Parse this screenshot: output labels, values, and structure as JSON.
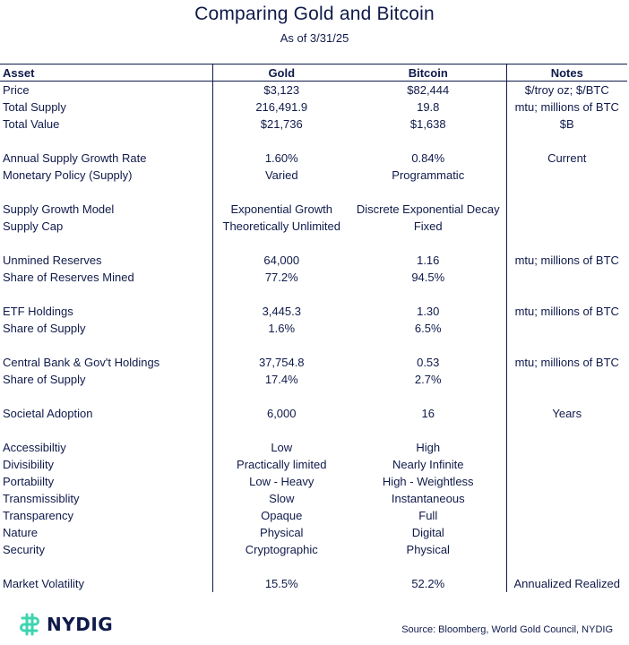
{
  "title": "Comparing Gold and Bitcoin",
  "subtitle": "As of 3/31/25",
  "headers": [
    "Asset",
    "Gold",
    "Bitcoin",
    "Notes"
  ],
  "groups": [
    [
      {
        "label": "Price",
        "gold": "$3,123",
        "bitcoin": "$82,444",
        "notes": "$/troy oz; $/BTC"
      },
      {
        "label": "Total Supply",
        "gold": "216,491.9",
        "bitcoin": "19.8",
        "notes": "mtu; millions of BTC"
      },
      {
        "label": "Total Value",
        "gold": "$21,736",
        "bitcoin": "$1,638",
        "notes": "$B"
      }
    ],
    [
      {
        "label": "Annual Supply Growth Rate",
        "gold": "1.60%",
        "bitcoin": "0.84%",
        "notes": "Current"
      },
      {
        "label": "Monetary Policy (Supply)",
        "gold": "Varied",
        "bitcoin": "Programmatic",
        "notes": ""
      }
    ],
    [
      {
        "label": "Supply Growth Model",
        "gold": "Exponential Growth",
        "bitcoin": "Discrete Exponential Decay",
        "notes": ""
      },
      {
        "label": "Supply Cap",
        "gold": "Theoretically Unlimited",
        "bitcoin": "Fixed",
        "notes": ""
      }
    ],
    [
      {
        "label": "Unmined Reserves",
        "gold": "64,000",
        "bitcoin": "1.16",
        "notes": "mtu; millions of BTC"
      },
      {
        "label": "Share of Reserves Mined",
        "gold": "77.2%",
        "bitcoin": "94.5%",
        "notes": ""
      }
    ],
    [
      {
        "label": "ETF Holdings",
        "gold": "3,445.3",
        "bitcoin": "1.30",
        "notes": "mtu; millions of BTC"
      },
      {
        "label": "Share of Supply",
        "gold": "1.6%",
        "bitcoin": "6.5%",
        "notes": ""
      }
    ],
    [
      {
        "label": "Central Bank & Gov't Holdings",
        "gold": "37,754.8",
        "bitcoin": "0.53",
        "notes": "mtu; millions of BTC"
      },
      {
        "label": "Share of Supply",
        "gold": "17.4%",
        "bitcoin": "2.7%",
        "notes": ""
      }
    ],
    [
      {
        "label": "Societal Adoption",
        "gold": "6,000",
        "bitcoin": "16",
        "notes": "Years"
      }
    ],
    [
      {
        "label": "Accessibiltiy",
        "gold": "Low",
        "bitcoin": "High",
        "notes": ""
      },
      {
        "label": "Divisibility",
        "gold": "Practically limited",
        "bitcoin": "Nearly Infinite",
        "notes": ""
      },
      {
        "label": "Portabiilty",
        "gold": "Low - Heavy",
        "bitcoin": "High - Weightless",
        "notes": ""
      },
      {
        "label": "Transmissiblity",
        "gold": "Slow",
        "bitcoin": "Instantaneous",
        "notes": ""
      },
      {
        "label": "Transparency",
        "gold": "Opaque",
        "bitcoin": "Full",
        "notes": ""
      },
      {
        "label": "Nature",
        "gold": "Physical",
        "bitcoin": "Digital",
        "notes": ""
      },
      {
        "label": "Security",
        "gold": "Cryptographic",
        "bitcoin": "Physical",
        "notes": ""
      }
    ],
    [
      {
        "label": "Market Volatility",
        "gold": "15.5%",
        "bitcoin": "52.2%",
        "notes": "Annualized Realized"
      }
    ]
  ],
  "footer": {
    "brand": "NYDIG",
    "source": "Source: Bloomberg, World Gold Council, NYDIG"
  },
  "colors": {
    "text": "#0f1a4a",
    "logo_accent": "#3fd4b0"
  },
  "icons": {
    "logo": "nydig-logo-icon"
  }
}
